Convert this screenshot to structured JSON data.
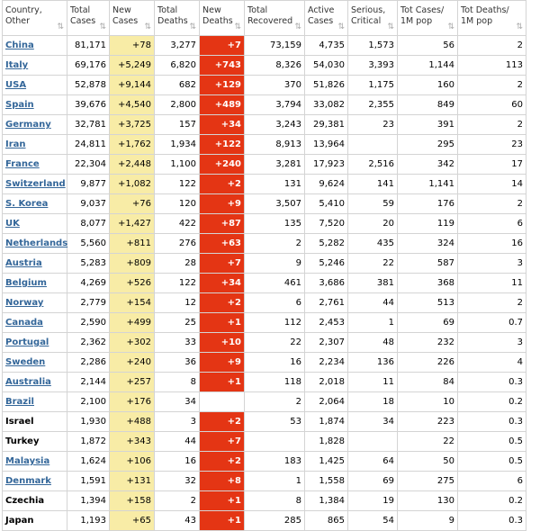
{
  "headers": [
    "Country,\nOther",
    "Total\nCases",
    "New\nCases",
    "Total\nDeaths",
    "New\nDeaths",
    "Total\nRecovered",
    "Active\nCases",
    "Serious,\nCritical",
    "Tot Cases/\n1M pop",
    "Tot Deaths/\n1M pop"
  ],
  "rows": [
    {
      "country": "China",
      "link": true,
      "total_cases": "81,171",
      "new_cases": "+78",
      "total_deaths": "3,277",
      "new_deaths": "+7",
      "recovered": "73,159",
      "active": "4,735",
      "serious": "1,573",
      "cases_per_m": "56",
      "deaths_per_m": "2"
    },
    {
      "country": "Italy",
      "link": true,
      "total_cases": "69,176",
      "new_cases": "+5,249",
      "total_deaths": "6,820",
      "new_deaths": "+743",
      "recovered": "8,326",
      "active": "54,030",
      "serious": "3,393",
      "cases_per_m": "1,144",
      "deaths_per_m": "113"
    },
    {
      "country": "USA",
      "link": true,
      "total_cases": "52,878",
      "new_cases": "+9,144",
      "total_deaths": "682",
      "new_deaths": "+129",
      "recovered": "370",
      "active": "51,826",
      "serious": "1,175",
      "cases_per_m": "160",
      "deaths_per_m": "2"
    },
    {
      "country": "Spain",
      "link": true,
      "total_cases": "39,676",
      "new_cases": "+4,540",
      "total_deaths": "2,800",
      "new_deaths": "+489",
      "recovered": "3,794",
      "active": "33,082",
      "serious": "2,355",
      "cases_per_m": "849",
      "deaths_per_m": "60"
    },
    {
      "country": "Germany",
      "link": true,
      "total_cases": "32,781",
      "new_cases": "+3,725",
      "total_deaths": "157",
      "new_deaths": "+34",
      "recovered": "3,243",
      "active": "29,381",
      "serious": "23",
      "cases_per_m": "391",
      "deaths_per_m": "2"
    },
    {
      "country": "Iran",
      "link": true,
      "total_cases": "24,811",
      "new_cases": "+1,762",
      "total_deaths": "1,934",
      "new_deaths": "+122",
      "recovered": "8,913",
      "active": "13,964",
      "serious": "",
      "cases_per_m": "295",
      "deaths_per_m": "23"
    },
    {
      "country": "France",
      "link": true,
      "total_cases": "22,304",
      "new_cases": "+2,448",
      "total_deaths": "1,100",
      "new_deaths": "+240",
      "recovered": "3,281",
      "active": "17,923",
      "serious": "2,516",
      "cases_per_m": "342",
      "deaths_per_m": "17"
    },
    {
      "country": "Switzerland",
      "link": true,
      "total_cases": "9,877",
      "new_cases": "+1,082",
      "total_deaths": "122",
      "new_deaths": "+2",
      "recovered": "131",
      "active": "9,624",
      "serious": "141",
      "cases_per_m": "1,141",
      "deaths_per_m": "14"
    },
    {
      "country": "S. Korea",
      "link": true,
      "total_cases": "9,037",
      "new_cases": "+76",
      "total_deaths": "120",
      "new_deaths": "+9",
      "recovered": "3,507",
      "active": "5,410",
      "serious": "59",
      "cases_per_m": "176",
      "deaths_per_m": "2"
    },
    {
      "country": "UK",
      "link": true,
      "total_cases": "8,077",
      "new_cases": "+1,427",
      "total_deaths": "422",
      "new_deaths": "+87",
      "recovered": "135",
      "active": "7,520",
      "serious": "20",
      "cases_per_m": "119",
      "deaths_per_m": "6"
    },
    {
      "country": "Netherlands",
      "link": true,
      "total_cases": "5,560",
      "new_cases": "+811",
      "total_deaths": "276",
      "new_deaths": "+63",
      "recovered": "2",
      "active": "5,282",
      "serious": "435",
      "cases_per_m": "324",
      "deaths_per_m": "16"
    },
    {
      "country": "Austria",
      "link": true,
      "total_cases": "5,283",
      "new_cases": "+809",
      "total_deaths": "28",
      "new_deaths": "+7",
      "recovered": "9",
      "active": "5,246",
      "serious": "22",
      "cases_per_m": "587",
      "deaths_per_m": "3"
    },
    {
      "country": "Belgium",
      "link": true,
      "total_cases": "4,269",
      "new_cases": "+526",
      "total_deaths": "122",
      "new_deaths": "+34",
      "recovered": "461",
      "active": "3,686",
      "serious": "381",
      "cases_per_m": "368",
      "deaths_per_m": "11"
    },
    {
      "country": "Norway",
      "link": true,
      "total_cases": "2,779",
      "new_cases": "+154",
      "total_deaths": "12",
      "new_deaths": "+2",
      "recovered": "6",
      "active": "2,761",
      "serious": "44",
      "cases_per_m": "513",
      "deaths_per_m": "2"
    },
    {
      "country": "Canada",
      "link": true,
      "total_cases": "2,590",
      "new_cases": "+499",
      "total_deaths": "25",
      "new_deaths": "+1",
      "recovered": "112",
      "active": "2,453",
      "serious": "1",
      "cases_per_m": "69",
      "deaths_per_m": "0.7"
    },
    {
      "country": "Portugal",
      "link": true,
      "total_cases": "2,362",
      "new_cases": "+302",
      "total_deaths": "33",
      "new_deaths": "+10",
      "recovered": "22",
      "active": "2,307",
      "serious": "48",
      "cases_per_m": "232",
      "deaths_per_m": "3"
    },
    {
      "country": "Sweden",
      "link": true,
      "total_cases": "2,286",
      "new_cases": "+240",
      "total_deaths": "36",
      "new_deaths": "+9",
      "recovered": "16",
      "active": "2,234",
      "serious": "136",
      "cases_per_m": "226",
      "deaths_per_m": "4"
    },
    {
      "country": "Australia",
      "link": true,
      "total_cases": "2,144",
      "new_cases": "+257",
      "total_deaths": "8",
      "new_deaths": "+1",
      "recovered": "118",
      "active": "2,018",
      "serious": "11",
      "cases_per_m": "84",
      "deaths_per_m": "0.3"
    },
    {
      "country": "Brazil",
      "link": true,
      "total_cases": "2,100",
      "new_cases": "+176",
      "total_deaths": "34",
      "new_deaths": "",
      "recovered": "2",
      "active": "2,064",
      "serious": "18",
      "cases_per_m": "10",
      "deaths_per_m": "0.2"
    },
    {
      "country": "Israel",
      "link": false,
      "total_cases": "1,930",
      "new_cases": "+488",
      "total_deaths": "3",
      "new_deaths": "+2",
      "recovered": "53",
      "active": "1,874",
      "serious": "34",
      "cases_per_m": "223",
      "deaths_per_m": "0.3"
    },
    {
      "country": "Turkey",
      "link": false,
      "total_cases": "1,872",
      "new_cases": "+343",
      "total_deaths": "44",
      "new_deaths": "+7",
      "recovered": "",
      "active": "1,828",
      "serious": "",
      "cases_per_m": "22",
      "deaths_per_m": "0.5"
    },
    {
      "country": "Malaysia",
      "link": true,
      "total_cases": "1,624",
      "new_cases": "+106",
      "total_deaths": "16",
      "new_deaths": "+2",
      "recovered": "183",
      "active": "1,425",
      "serious": "64",
      "cases_per_m": "50",
      "deaths_per_m": "0.5"
    },
    {
      "country": "Denmark",
      "link": true,
      "total_cases": "1,591",
      "new_cases": "+131",
      "total_deaths": "32",
      "new_deaths": "+8",
      "recovered": "1",
      "active": "1,558",
      "serious": "69",
      "cases_per_m": "275",
      "deaths_per_m": "6"
    },
    {
      "country": "Czechia",
      "link": false,
      "total_cases": "1,394",
      "new_cases": "+158",
      "total_deaths": "2",
      "new_deaths": "+1",
      "recovered": "8",
      "active": "1,384",
      "serious": "19",
      "cases_per_m": "130",
      "deaths_per_m": "0.2"
    },
    {
      "country": "Japan",
      "link": false,
      "total_cases": "1,193",
      "new_cases": "+65",
      "total_deaths": "43",
      "new_deaths": "+1",
      "recovered": "285",
      "active": "865",
      "serious": "54",
      "cases_per_m": "9",
      "deaths_per_m": "0.3"
    }
  ],
  "sort_icon": "⇅",
  "colors": {
    "new_cases_bg": "#f8eca6",
    "new_deaths_bg": "#e43514",
    "link": "#336699"
  }
}
